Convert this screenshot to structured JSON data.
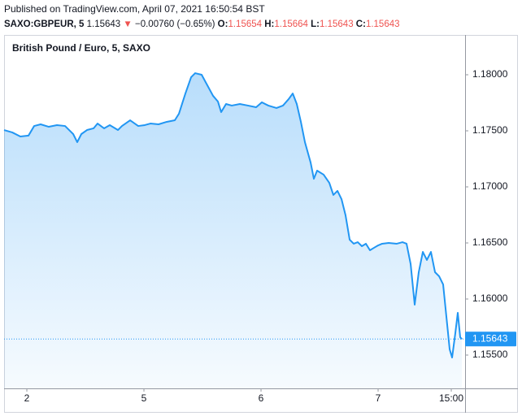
{
  "chart_data": {
    "type": "area",
    "published": "Published on TradingView.com, April 07, 2021 16:50:54 BST",
    "symbol": "SAXO:GBPEUR, 5",
    "last_price": 1.15643,
    "direction": "▼",
    "change": "−0.00760 (−0.65%)",
    "ohlc": [
      {
        "label": "O:",
        "value": 1.15654
      },
      {
        "label": "H:",
        "value": 1.15664
      },
      {
        "label": "L:",
        "value": 1.15643
      },
      {
        "label": "C:",
        "value": 1.15643
      }
    ],
    "up_down_color": "#ef5350",
    "x": [
      -4.67,
      -3,
      -1.33,
      0.33,
      1.5,
      2.83,
      4.5,
      6.17,
      7.83,
      8.67,
      9.5,
      10.33,
      11.17,
      12.33,
      13.67,
      14.5,
      15.83,
      17,
      18.67,
      19.5,
      21.17,
      22.83,
      24.17,
      25.33,
      27,
      28.67,
      30.33,
      31.17,
      32.5,
      33.67,
      34.5,
      35.83,
      37,
      38.17,
      39.17,
      39.83,
      40.83,
      42,
      43.67,
      45.33,
      47,
      48.17,
      49.5,
      51.17,
      52.5,
      53.67,
      54.5,
      55.33,
      56.17,
      57,
      58.17,
      58.83,
      59.5,
      60.83,
      62,
      62.83,
      63.67,
      64.5,
      65.33,
      66.17,
      67,
      67.83,
      68.67,
      69.5,
      70.33,
      71.17,
      72,
      72.83,
      74.17,
      75.83,
      77,
      77.83,
      78.67,
      79.5,
      80.33,
      81.17,
      82,
      82.83,
      83.67,
      84.5,
      85.33,
      86.17,
      86.67,
      87.17,
      87.83,
      88.33,
      88.83,
      89.17
    ],
    "series": [
      {
        "name": "British Pound / Euro, 5, SAXO",
        "color": "#2196f3",
        "values": [
          1.17507,
          1.17486,
          1.17449,
          1.17457,
          1.17543,
          1.17558,
          1.17536,
          1.17551,
          1.17543,
          1.17507,
          1.17471,
          1.17399,
          1.17471,
          1.17507,
          1.17522,
          1.17565,
          1.17522,
          1.17551,
          1.17507,
          1.17543,
          1.17594,
          1.17543,
          1.17551,
          1.17565,
          1.17558,
          1.1758,
          1.17594,
          1.17652,
          1.17833,
          1.17978,
          1.18014,
          1.18,
          1.17906,
          1.17812,
          1.17761,
          1.17667,
          1.17739,
          1.17725,
          1.17739,
          1.17725,
          1.1771,
          1.17754,
          1.17725,
          1.17703,
          1.17725,
          1.17783,
          1.17833,
          1.17739,
          1.1758,
          1.17399,
          1.17217,
          1.17072,
          1.17145,
          1.17109,
          1.17036,
          1.16928,
          1.16964,
          1.16891,
          1.16746,
          1.16529,
          1.16493,
          1.16507,
          1.16471,
          1.16493,
          1.16435,
          1.16457,
          1.16478,
          1.16493,
          1.165,
          1.16493,
          1.16507,
          1.16493,
          1.16312,
          1.15949,
          1.16239,
          1.1642,
          1.16348,
          1.1642,
          1.16239,
          1.16203,
          1.1613,
          1.15768,
          1.15551,
          1.15478,
          1.15696,
          1.15877,
          1.15659,
          1.15643
        ]
      }
    ],
    "xlim": [
      -4.67,
      89.83
    ],
    "xticks": [
      {
        "value": 0,
        "label": "2"
      },
      {
        "value": 24,
        "label": "5"
      },
      {
        "value": 48,
        "label": "6"
      },
      {
        "value": 72,
        "label": "7"
      },
      {
        "value": 87,
        "label": "15:00"
      }
    ],
    "ylim": [
      1.15203,
      1.18355
    ],
    "yticks": [
      {
        "value": 1.155,
        "label": "1.15500"
      },
      {
        "value": 1.16,
        "label": "1.16000"
      },
      {
        "value": 1.165,
        "label": "1.16500"
      },
      {
        "value": 1.17,
        "label": "1.17000"
      },
      {
        "value": 1.175,
        "label": "1.17500"
      },
      {
        "value": 1.18,
        "label": "1.18000"
      }
    ],
    "grid": false
  }
}
